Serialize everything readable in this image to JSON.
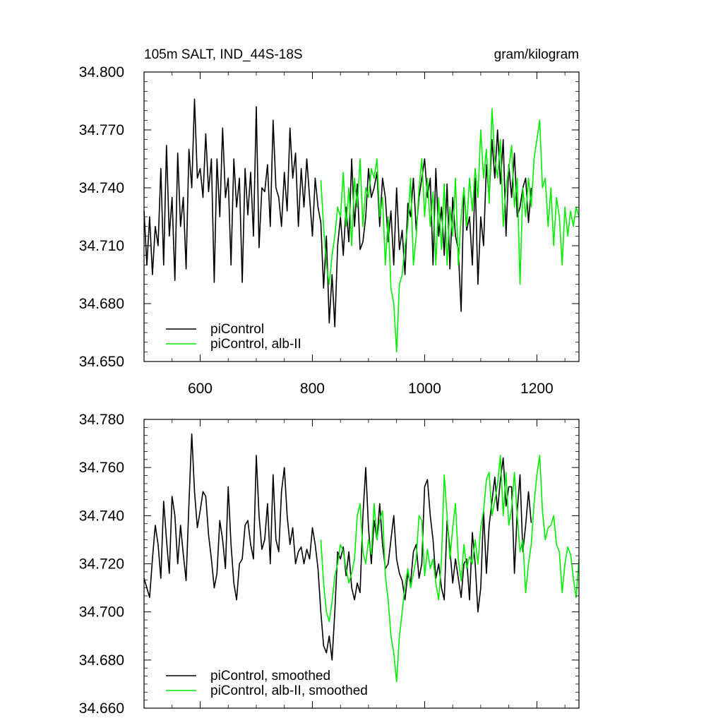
{
  "chart_data": [
    {
      "type": "line",
      "title": "105m SALT, IND_44S-18S",
      "units": "gram/kilogram",
      "xlim": [
        500,
        1275
      ],
      "ylim": [
        34.65,
        34.8
      ],
      "x_ticks": [
        600,
        800,
        1000,
        1200
      ],
      "y_ticks": [
        "34.650",
        "34.680",
        "34.710",
        "34.740",
        "34.770",
        "34.800"
      ],
      "legend_position": "bottom-left",
      "series": [
        {
          "name": "piControl",
          "color": "#000000",
          "x": [
            500,
            505,
            510,
            515,
            520,
            525,
            530,
            535,
            540,
            545,
            550,
            555,
            560,
            565,
            570,
            575,
            580,
            585,
            590,
            595,
            600,
            605,
            610,
            615,
            620,
            625,
            630,
            635,
            640,
            645,
            650,
            655,
            660,
            665,
            670,
            675,
            680,
            685,
            690,
            695,
            700,
            705,
            710,
            715,
            720,
            725,
            730,
            735,
            740,
            745,
            750,
            755,
            760,
            765,
            770,
            775,
            780,
            785,
            790,
            795,
            800,
            805,
            810,
            815,
            820,
            825,
            830,
            835,
            840,
            845,
            850,
            855,
            860,
            865,
            870,
            875,
            880,
            885,
            890,
            895,
            900,
            905,
            910,
            915,
            920,
            925,
            930,
            935,
            940,
            945,
            950,
            955,
            960,
            965,
            970,
            975,
            980,
            985,
            990,
            995,
            1000,
            1005,
            1010,
            1015,
            1020,
            1025,
            1030,
            1035,
            1040,
            1045,
            1050,
            1055,
            1060,
            1065,
            1070,
            1075,
            1080,
            1085,
            1090,
            1095,
            1100,
            1105,
            1110,
            1115,
            1120,
            1125,
            1130,
            1135,
            1140,
            1145,
            1150,
            1155,
            1160,
            1165,
            1170,
            1175,
            1180,
            1185,
            1190
          ],
          "y": [
            34.728,
            34.7,
            34.725,
            34.695,
            34.72,
            34.71,
            34.75,
            34.7,
            34.762,
            34.715,
            34.735,
            34.692,
            34.758,
            34.72,
            34.735,
            34.698,
            34.76,
            34.74,
            34.786,
            34.745,
            34.75,
            34.735,
            34.768,
            34.738,
            34.755,
            34.691,
            34.755,
            34.725,
            34.771,
            34.735,
            34.745,
            34.7,
            34.755,
            34.73,
            34.745,
            34.691,
            34.75,
            34.726,
            34.748,
            34.715,
            34.782,
            34.709,
            34.74,
            34.738,
            34.752,
            34.72,
            34.775,
            34.74,
            34.735,
            34.72,
            34.748,
            34.728,
            34.771,
            34.745,
            34.758,
            34.72,
            34.75,
            34.73,
            34.755,
            34.735,
            34.715,
            34.745,
            34.73,
            34.722,
            34.688,
            34.715,
            34.67,
            34.695,
            34.668,
            34.71,
            34.725,
            34.705,
            34.73,
            34.712,
            34.755,
            34.72,
            34.742,
            34.708,
            34.712,
            34.725,
            34.75,
            34.735,
            34.74,
            34.748,
            34.72,
            34.745,
            34.735,
            34.712,
            34.728,
            34.7,
            34.74,
            34.708,
            34.718,
            34.695,
            34.732,
            34.725,
            34.745,
            34.718,
            34.735,
            34.745,
            34.755,
            34.735,
            34.745,
            34.7,
            34.75,
            34.715,
            34.73,
            34.705,
            34.742,
            34.698,
            34.735,
            34.715,
            34.708,
            34.676,
            34.74,
            34.718,
            34.725,
            34.7,
            34.745,
            34.69,
            34.725,
            34.71,
            34.752,
            34.735,
            34.765,
            34.745,
            34.77,
            34.742,
            34.765,
            34.715,
            34.752,
            34.735,
            34.758,
            34.725,
            34.73,
            34.74,
            34.745,
            34.722,
            34.74
          ]
        },
        {
          "name": "piControl, alb-II",
          "color": "#00ee00",
          "x": [
            815,
            820,
            825,
            830,
            835,
            840,
            845,
            850,
            855,
            860,
            865,
            870,
            875,
            880,
            885,
            890,
            895,
            900,
            905,
            910,
            915,
            920,
            925,
            930,
            935,
            940,
            945,
            950,
            955,
            960,
            965,
            970,
            975,
            980,
            985,
            990,
            995,
            1000,
            1005,
            1010,
            1015,
            1020,
            1025,
            1030,
            1035,
            1040,
            1045,
            1050,
            1055,
            1060,
            1065,
            1070,
            1075,
            1080,
            1085,
            1090,
            1095,
            1100,
            1105,
            1110,
            1115,
            1120,
            1125,
            1130,
            1135,
            1140,
            1145,
            1150,
            1155,
            1160,
            1165,
            1170,
            1175,
            1180,
            1185,
            1190,
            1195,
            1200,
            1205,
            1210,
            1215,
            1220,
            1225,
            1230,
            1235,
            1240,
            1245,
            1250,
            1255,
            1260,
            1265,
            1270,
            1275
          ],
          "y": [
            34.744,
            34.72,
            34.7,
            34.69,
            34.705,
            34.715,
            34.73,
            34.725,
            34.748,
            34.72,
            34.74,
            34.71,
            34.745,
            34.73,
            34.755,
            34.72,
            34.74,
            34.735,
            34.75,
            34.745,
            34.755,
            34.725,
            34.735,
            34.7,
            34.725,
            34.688,
            34.68,
            34.655,
            34.69,
            34.695,
            34.71,
            34.72,
            34.745,
            34.7,
            34.715,
            34.74,
            34.755,
            34.725,
            34.745,
            34.72,
            34.738,
            34.7,
            34.735,
            34.708,
            34.742,
            34.7,
            34.73,
            34.715,
            34.745,
            34.7,
            34.725,
            34.74,
            34.72,
            34.745,
            34.728,
            34.75,
            34.735,
            34.77,
            34.745,
            34.76,
            34.732,
            34.781,
            34.755,
            34.745,
            34.765,
            34.72,
            34.74,
            34.75,
            34.762,
            34.73,
            34.745,
            34.69,
            34.74,
            34.725,
            34.745,
            34.73,
            34.755,
            34.765,
            34.775,
            34.74,
            34.745,
            34.72,
            34.74,
            34.71,
            34.735,
            34.725,
            34.7,
            34.73,
            34.715,
            34.728,
            34.72,
            34.73,
            34.725
          ]
        }
      ]
    },
    {
      "type": "line",
      "xlim": [
        500,
        1275
      ],
      "ylim": [
        34.66,
        34.78
      ],
      "x_ticks": [
        600,
        800,
        1000,
        1200
      ],
      "y_ticks": [
        "34.660",
        "34.680",
        "34.700",
        "34.720",
        "34.740",
        "34.760",
        "34.780"
      ],
      "legend_position": "bottom-left",
      "series": [
        {
          "name": "piControl, smoothed",
          "color": "#000000",
          "x": [
            500,
            505,
            510,
            515,
            520,
            525,
            530,
            535,
            540,
            545,
            550,
            555,
            560,
            565,
            570,
            575,
            580,
            585,
            590,
            595,
            600,
            605,
            610,
            615,
            620,
            625,
            630,
            635,
            640,
            645,
            650,
            655,
            660,
            665,
            670,
            675,
            680,
            685,
            690,
            695,
            700,
            705,
            710,
            715,
            720,
            725,
            730,
            735,
            740,
            745,
            750,
            755,
            760,
            765,
            770,
            775,
            780,
            785,
            790,
            795,
            800,
            805,
            810,
            815,
            820,
            825,
            830,
            835,
            840,
            845,
            850,
            855,
            860,
            865,
            870,
            875,
            880,
            885,
            890,
            895,
            900,
            905,
            910,
            915,
            920,
            925,
            930,
            935,
            940,
            945,
            950,
            955,
            960,
            965,
            970,
            975,
            980,
            985,
            990,
            995,
            1000,
            1005,
            1010,
            1015,
            1020,
            1025,
            1030,
            1035,
            1040,
            1045,
            1050,
            1055,
            1060,
            1065,
            1070,
            1075,
            1080,
            1085,
            1090,
            1095,
            1100,
            1105,
            1110,
            1115,
            1120,
            1125,
            1130,
            1135,
            1140,
            1145,
            1150,
            1155,
            1160,
            1165,
            1170,
            1175,
            1180,
            1185,
            1190
          ],
          "y": [
            34.714,
            34.71,
            34.706,
            34.722,
            34.736,
            34.728,
            34.714,
            34.746,
            34.73,
            34.716,
            34.748,
            34.74,
            34.72,
            34.736,
            34.724,
            34.713,
            34.745,
            34.774,
            34.75,
            34.735,
            34.742,
            34.75,
            34.748,
            34.732,
            34.722,
            34.71,
            34.716,
            34.738,
            34.73,
            34.718,
            34.752,
            34.728,
            34.712,
            34.705,
            34.72,
            34.722,
            34.736,
            34.738,
            34.728,
            34.722,
            34.765,
            34.74,
            34.726,
            34.73,
            34.745,
            34.72,
            34.757,
            34.73,
            34.725,
            34.75,
            34.76,
            34.74,
            34.728,
            34.735,
            34.72,
            34.725,
            34.727,
            34.72,
            34.726,
            34.722,
            34.735,
            34.728,
            34.718,
            34.7,
            34.686,
            34.683,
            34.69,
            34.68,
            34.7,
            34.725,
            34.722,
            34.727,
            34.715,
            34.725,
            34.71,
            34.705,
            34.712,
            34.708,
            34.74,
            34.76,
            34.735,
            34.72,
            34.738,
            34.73,
            34.745,
            34.728,
            34.718,
            34.72,
            34.73,
            34.74,
            34.722,
            34.716,
            34.713,
            34.705,
            34.716,
            34.712,
            34.725,
            34.728,
            34.714,
            34.72,
            34.752,
            34.755,
            34.74,
            34.73,
            34.714,
            34.72,
            34.71,
            34.705,
            34.738,
            34.726,
            34.712,
            34.722,
            34.714,
            34.706,
            34.72,
            34.722,
            34.705,
            34.733,
            34.72,
            34.7,
            34.71,
            34.742,
            34.716,
            34.736,
            34.746,
            34.756,
            34.742,
            34.755,
            34.764,
            34.744,
            34.752,
            34.752,
            34.716,
            34.742,
            34.757,
            34.725,
            34.736,
            34.75,
            34.737
          ]
        },
        {
          "name": "piControl, alb-II, smoothed",
          "color": "#00ee00",
          "x": [
            815,
            820,
            825,
            830,
            835,
            840,
            845,
            850,
            855,
            860,
            865,
            870,
            875,
            880,
            885,
            890,
            895,
            900,
            905,
            910,
            915,
            920,
            925,
            930,
            935,
            940,
            945,
            950,
            955,
            960,
            965,
            970,
            975,
            980,
            985,
            990,
            995,
            1000,
            1005,
            1010,
            1015,
            1020,
            1025,
            1030,
            1035,
            1040,
            1045,
            1050,
            1055,
            1060,
            1065,
            1070,
            1075,
            1080,
            1085,
            1090,
            1095,
            1100,
            1105,
            1110,
            1115,
            1120,
            1125,
            1130,
            1135,
            1140,
            1145,
            1150,
            1155,
            1160,
            1165,
            1170,
            1175,
            1180,
            1185,
            1190,
            1195,
            1200,
            1205,
            1210,
            1215,
            1220,
            1225,
            1230,
            1235,
            1240,
            1245,
            1250,
            1255,
            1260,
            1265,
            1270,
            1275
          ],
          "y": [
            34.73,
            34.712,
            34.7,
            34.696,
            34.704,
            34.715,
            34.72,
            34.728,
            34.725,
            34.718,
            34.712,
            34.716,
            34.722,
            34.74,
            34.745,
            34.725,
            34.72,
            34.73,
            34.724,
            34.745,
            34.73,
            34.738,
            34.742,
            34.715,
            34.705,
            34.69,
            34.683,
            34.671,
            34.69,
            34.7,
            34.711,
            34.718,
            34.71,
            34.716,
            34.722,
            34.74,
            34.738,
            34.715,
            34.726,
            34.718,
            34.722,
            34.712,
            34.705,
            34.722,
            34.757,
            34.74,
            34.722,
            34.735,
            34.745,
            34.722,
            34.713,
            34.728,
            34.718,
            34.723,
            34.72,
            34.73,
            34.72,
            34.735,
            34.742,
            34.755,
            34.758,
            34.74,
            34.746,
            34.753,
            34.765,
            34.74,
            34.758,
            34.736,
            34.743,
            34.758,
            34.74,
            34.725,
            34.73,
            34.708,
            34.72,
            34.728,
            34.745,
            34.757,
            34.765,
            34.742,
            34.73,
            34.735,
            34.736,
            34.74,
            34.728,
            34.725,
            34.708,
            34.72,
            34.727,
            34.724,
            34.714,
            34.706,
            34.722
          ]
        }
      ]
    }
  ]
}
